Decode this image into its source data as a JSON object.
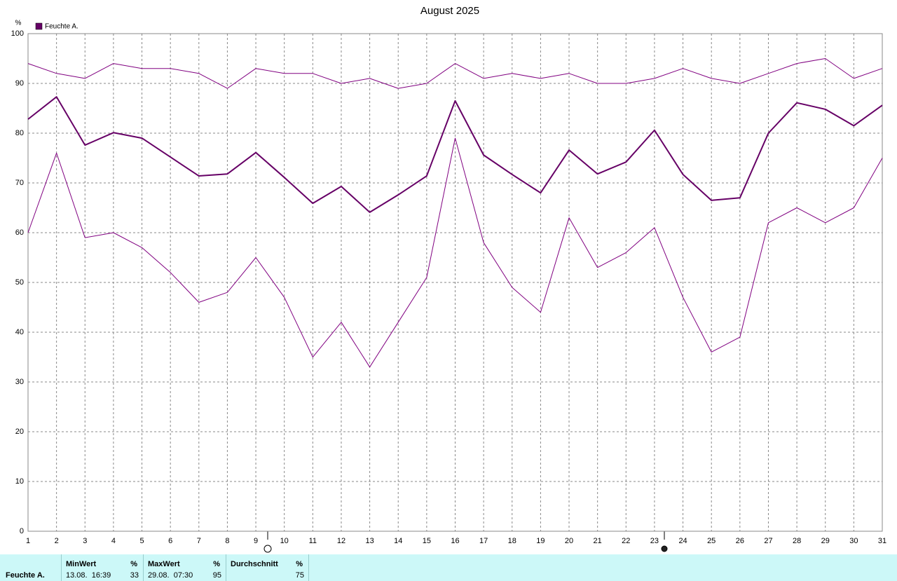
{
  "chart_data": {
    "type": "line",
    "title": "August 2025",
    "y_label": "%",
    "x": [
      1,
      2,
      3,
      4,
      5,
      6,
      7,
      8,
      9,
      10,
      11,
      12,
      13,
      14,
      15,
      16,
      17,
      18,
      19,
      20,
      21,
      22,
      23,
      24,
      25,
      26,
      27,
      28,
      29,
      30,
      31
    ],
    "xlim": [
      1,
      31
    ],
    "xticks": [
      1,
      2,
      3,
      4,
      5,
      6,
      7,
      8,
      9,
      10,
      11,
      12,
      13,
      14,
      15,
      16,
      17,
      18,
      19,
      20,
      21,
      22,
      23,
      24,
      25,
      26,
      27,
      28,
      29,
      30,
      31
    ],
    "ylim": [
      0,
      100
    ],
    "yticks": [
      0,
      10,
      20,
      30,
      40,
      50,
      60,
      70,
      80,
      90,
      100
    ],
    "grid": true,
    "legend": "top-left",
    "series": [
      {
        "color": "#800080",
        "line_width": 1,
        "values": [
          94,
          92,
          91,
          94,
          93,
          93,
          92,
          89,
          93,
          92,
          92,
          90,
          91,
          89,
          90,
          94,
          91,
          92,
          91,
          92,
          90,
          90,
          91,
          93,
          91,
          90,
          92,
          94,
          95,
          91,
          93
        ]
      },
      {
        "name": "Feuchte A.",
        "color": "#660066",
        "line_width": 2,
        "values": [
          82.8,
          87.3,
          77.6,
          80.1,
          79,
          75.2,
          71.4,
          71.8,
          76.1,
          71.1,
          65.9,
          69.3,
          64.1,
          67.6,
          71.4,
          86.5,
          75.6,
          71.7,
          68,
          76.6,
          71.8,
          74.2,
          80.6,
          71.7,
          66.5,
          67,
          80,
          86.1,
          84.8,
          81.5,
          85.6
        ]
      },
      {
        "color": "#800080",
        "line_width": 1,
        "values": [
          60,
          76,
          59,
          60,
          57,
          52,
          46,
          48,
          55,
          47,
          35,
          42,
          33,
          42,
          51,
          79,
          58,
          49,
          44,
          63,
          53,
          56,
          61,
          47,
          36,
          39,
          62,
          65,
          62,
          65,
          75
        ]
      }
    ]
  },
  "table": {
    "series": "Feuchte A.",
    "columns": [
      {
        "label": "MinWert",
        "unit": "%",
        "time": "13.08.  16:39",
        "value": 33
      },
      {
        "label": "MaxWert",
        "unit": "%",
        "time": "29.08.  07:30",
        "value": 95
      },
      {
        "label": "Durchschnitt",
        "unit": "%",
        "value": 75
      }
    ]
  }
}
